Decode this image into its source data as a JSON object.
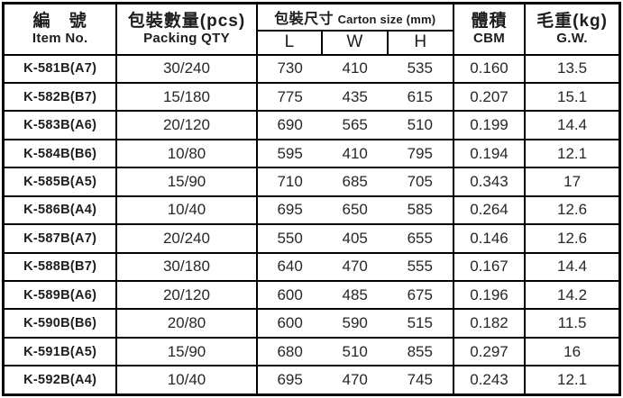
{
  "colors": {
    "border": "#000000",
    "text": "#1d1d1d",
    "background": "#ffffff"
  },
  "table": {
    "header": {
      "item_no_zh": "編 號",
      "item_no_en": "Item No.",
      "packing_qty_zh": "包裝數量(pcs)",
      "packing_qty_en": "Packing QTY",
      "carton_size_zh": "包裝尺寸",
      "carton_size_en": "Carton size (mm)",
      "dim_l": "L",
      "dim_w": "W",
      "dim_h": "H",
      "cbm_zh": "體積",
      "cbm_en": "CBM",
      "gw_zh": "毛重(kg)",
      "gw_en": "G.W."
    },
    "rows": [
      {
        "item": "K-581B(A7)",
        "qty": "30/240",
        "l": "730",
        "w": "410",
        "h": "535",
        "cbm": "0.160",
        "gw": "13.5"
      },
      {
        "item": "K-582B(B7)",
        "qty": "15/180",
        "l": "775",
        "w": "435",
        "h": "615",
        "cbm": "0.207",
        "gw": "15.1"
      },
      {
        "item": "K-583B(A6)",
        "qty": "20/120",
        "l": "690",
        "w": "565",
        "h": "510",
        "cbm": "0.199",
        "gw": "14.4"
      },
      {
        "item": "K-584B(B6)",
        "qty": "10/80",
        "l": "595",
        "w": "410",
        "h": "795",
        "cbm": "0.194",
        "gw": "12.1"
      },
      {
        "item": "K-585B(A5)",
        "qty": "15/90",
        "l": "710",
        "w": "685",
        "h": "705",
        "cbm": "0.343",
        "gw": "17"
      },
      {
        "item": "K-586B(A4)",
        "qty": "10/40",
        "l": "695",
        "w": "650",
        "h": "585",
        "cbm": "0.264",
        "gw": "12.6"
      },
      {
        "item": "K-587B(A7)",
        "qty": "20/240",
        "l": "550",
        "w": "405",
        "h": "655",
        "cbm": "0.146",
        "gw": "12.6"
      },
      {
        "item": "K-588B(B7)",
        "qty": "30/180",
        "l": "640",
        "w": "470",
        "h": "555",
        "cbm": "0.167",
        "gw": "14.4"
      },
      {
        "item": "K-589B(A6)",
        "qty": "20/120",
        "l": "600",
        "w": "485",
        "h": "675",
        "cbm": "0.196",
        "gw": "14.2"
      },
      {
        "item": "K-590B(B6)",
        "qty": "20/80",
        "l": "600",
        "w": "590",
        "h": "515",
        "cbm": "0.182",
        "gw": "11.5"
      },
      {
        "item": "K-591B(A5)",
        "qty": "15/90",
        "l": "680",
        "w": "510",
        "h": "855",
        "cbm": "0.297",
        "gw": "16"
      },
      {
        "item": "K-592B(A4)",
        "qty": "10/40",
        "l": "695",
        "w": "470",
        "h": "745",
        "cbm": "0.243",
        "gw": "12.1"
      }
    ]
  }
}
